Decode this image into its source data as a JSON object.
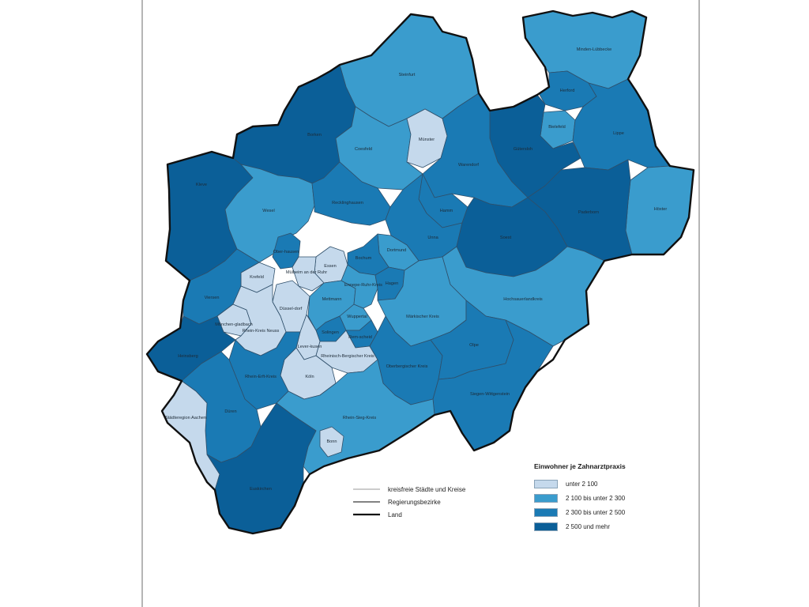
{
  "map": {
    "regions": [
      {
        "id": "steinfurt",
        "label": "Steinfurt",
        "class": 2
      },
      {
        "id": "borken",
        "label": "Borken",
        "class": 4
      },
      {
        "id": "minden-luebbecke",
        "label": "Minden-Lübbecke",
        "class": 2
      },
      {
        "id": "herford",
        "label": "Herford",
        "class": 3
      },
      {
        "id": "bielefeld",
        "label": "Bielefeld",
        "class": 2
      },
      {
        "id": "guetersloh",
        "label": "Gütersloh",
        "class": 4
      },
      {
        "id": "lippe",
        "label": "Lippe",
        "class": 3
      },
      {
        "id": "hoexter",
        "label": "Höxter",
        "class": 2
      },
      {
        "id": "paderborn",
        "label": "Paderborn",
        "class": 4
      },
      {
        "id": "coesfeld",
        "label": "Coesfeld",
        "class": 2
      },
      {
        "id": "muenster",
        "label": "Münster",
        "class": 1
      },
      {
        "id": "warendorf",
        "label": "Warendorf",
        "class": 3
      },
      {
        "id": "kleve",
        "label": "Kleve",
        "class": 4
      },
      {
        "id": "wesel",
        "label": "Wesel",
        "class": 2
      },
      {
        "id": "recklinghausen",
        "label": "Recklinghausen",
        "class": 3
      },
      {
        "id": "hamm",
        "label": "Hamm",
        "class": 3
      },
      {
        "id": "unna",
        "label": "Unna",
        "class": 3
      },
      {
        "id": "soest",
        "label": "Soest",
        "class": 4
      },
      {
        "id": "dortmund",
        "label": "Dortmund",
        "class": 2
      },
      {
        "id": "bochum",
        "label": "Bochum",
        "class": 3
      },
      {
        "id": "essen",
        "label": "Essen",
        "class": 1
      },
      {
        "id": "oberhausen",
        "label": "Ober-hausen",
        "class": 3
      },
      {
        "id": "muelheim",
        "label": "Mülheim an der Ruhr",
        "class": 1
      },
      {
        "id": "krefeld",
        "label": "Krefeld",
        "class": 1
      },
      {
        "id": "viersen",
        "label": "Viersen",
        "class": 3
      },
      {
        "id": "duesseldorf",
        "label": "Düssel-dorf",
        "class": 1
      },
      {
        "id": "mettmann",
        "label": "Mettmann",
        "class": 2
      },
      {
        "id": "wuppertal",
        "label": "Wuppertal",
        "class": 2
      },
      {
        "id": "ennepe",
        "label": "Ennepe-Ruhr-Kreis",
        "class": 2
      },
      {
        "id": "hagen",
        "label": "Hagen",
        "class": 3
      },
      {
        "id": "hochsauerland",
        "label": "Hochsauerlandkreis",
        "class": 2
      },
      {
        "id": "maerkisch",
        "label": "Märkischer Kreis",
        "class": 2
      },
      {
        "id": "moenchengladbach",
        "label": "Mönchen-gladbach",
        "class": 1
      },
      {
        "id": "rhein-kreis-neuss",
        "label": "Rhein-Kreis Neuss",
        "class": 1
      },
      {
        "id": "solingen",
        "label": "Solingen",
        "class": 3
      },
      {
        "id": "remscheid",
        "label": "Rem-scheid",
        "class": 3
      },
      {
        "id": "heinsberg",
        "label": "Heinsberg",
        "class": 4
      },
      {
        "id": "leverkusen",
        "label": "Lever-kusen",
        "class": 1
      },
      {
        "id": "rheinisch-bergischer-kreis",
        "label": "Rheinisch-Bergischer Kreis",
        "class": 1
      },
      {
        "id": "koeln",
        "label": "Köln",
        "class": 1
      },
      {
        "id": "oberbergischer-kreis",
        "label": "Oberbergischer Kreis",
        "class": 3
      },
      {
        "id": "olpe",
        "label": "Olpe",
        "class": 3
      },
      {
        "id": "siegen-wittgenstein",
        "label": "Siegen-Wittgenstein",
        "class": 3
      },
      {
        "id": "rhein-erft-kreis",
        "label": "Rhein-Erft-Kreis",
        "class": 3
      },
      {
        "id": "dueren",
        "label": "Düren",
        "class": 3
      },
      {
        "id": "staedteregion-aachen",
        "label": "Städteregion Aachen",
        "class": 1
      },
      {
        "id": "rhein-sieg-kreis",
        "label": "Rhein-Sieg-Kreis",
        "class": 2
      },
      {
        "id": "bonn",
        "label": "Bonn",
        "class": 1
      },
      {
        "id": "euskirchen",
        "label": "Euskirchen",
        "class": 4
      }
    ]
  },
  "legend": {
    "title": "Einwohner je Zahnarztpraxis",
    "items": [
      {
        "label": "unter 2 100",
        "color": "#c5d9ec"
      },
      {
        "label": "2 100 bis unter 2 300",
        "color": "#3a9ccd"
      },
      {
        "label": "2 300 bis unter 2 500",
        "color": "#1a7ab4"
      },
      {
        "label": "2 500 und mehr",
        "color": "#0b5f98"
      }
    ]
  },
  "boundary_legend": {
    "items": [
      {
        "label": "kreisfreie Städte und Kreise",
        "color": "#9a9a9a"
      },
      {
        "label": "Regierungsbezirke",
        "color": "#5a5a5a"
      },
      {
        "label": "Land",
        "color": "#111111"
      }
    ]
  }
}
